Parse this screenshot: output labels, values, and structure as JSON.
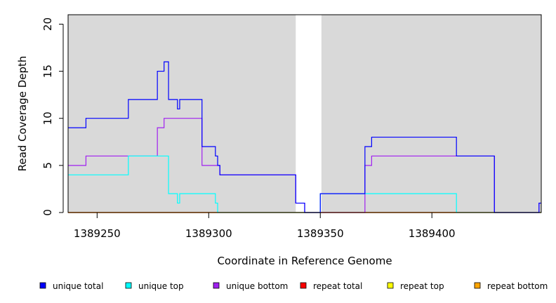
{
  "chart_data": {
    "type": "line",
    "xlabel": "Coordinate in Reference Genome",
    "ylabel": "Read Coverage Depth",
    "xlim": [
      1389237,
      1389449
    ],
    "ylim": [
      0,
      21
    ],
    "x_ticks": [
      {
        "value": 1389250,
        "label": "1389250"
      },
      {
        "value": 1389300,
        "label": "1389300"
      },
      {
        "value": 1389350,
        "label": "1389350"
      },
      {
        "value": 1389400,
        "label": "1389400"
      }
    ],
    "y_ticks": [
      {
        "value": 0,
        "label": "0"
      },
      {
        "value": 5,
        "label": "5"
      },
      {
        "value": 10,
        "label": "10"
      },
      {
        "value": 15,
        "label": "15"
      },
      {
        "value": 20,
        "label": "20"
      }
    ],
    "shaded_regions": [
      {
        "x_start": 1389237,
        "x_end": 1389339,
        "color": "#d9d9d9"
      },
      {
        "x_start": 1389350.5,
        "x_end": 1389449,
        "color": "#d9d9d9"
      }
    ],
    "legend_position": "bottom",
    "series": [
      {
        "name": "unique total",
        "color": "#0000ff",
        "points": [
          [
            1389237,
            9
          ],
          [
            1389245,
            9
          ],
          [
            1389245,
            10
          ],
          [
            1389264,
            10
          ],
          [
            1389264,
            12
          ],
          [
            1389277,
            12
          ],
          [
            1389277,
            15
          ],
          [
            1389280,
            15
          ],
          [
            1389280,
            16
          ],
          [
            1389282,
            16
          ],
          [
            1389282,
            12
          ],
          [
            1389286,
            12
          ],
          [
            1389286,
            11
          ],
          [
            1389287,
            11
          ],
          [
            1389287,
            12
          ],
          [
            1389297,
            12
          ],
          [
            1389297,
            7
          ],
          [
            1389303,
            7
          ],
          [
            1389303,
            6
          ],
          [
            1389304,
            6
          ],
          [
            1389304,
            5
          ],
          [
            1389305,
            5
          ],
          [
            1389305,
            4
          ],
          [
            1389339,
            4
          ],
          [
            1389339,
            1
          ],
          [
            1389343,
            1
          ],
          [
            1389343,
            0
          ],
          [
            1389350,
            0
          ],
          [
            1389350,
            2
          ],
          [
            1389370,
            2
          ],
          [
            1389370,
            7
          ],
          [
            1389373,
            7
          ],
          [
            1389373,
            8
          ],
          [
            1389411,
            8
          ],
          [
            1389411,
            6
          ],
          [
            1389428,
            6
          ],
          [
            1389428,
            0
          ],
          [
            1389448,
            0
          ],
          [
            1389448,
            1
          ],
          [
            1389449,
            1
          ]
        ]
      },
      {
        "name": "unique top",
        "color": "#00ffff",
        "points": [
          [
            1389237,
            4
          ],
          [
            1389264,
            4
          ],
          [
            1389264,
            6
          ],
          [
            1389282,
            6
          ],
          [
            1389282,
            2
          ],
          [
            1389286,
            2
          ],
          [
            1389286,
            1
          ],
          [
            1389287,
            1
          ],
          [
            1389287,
            2
          ],
          [
            1389303,
            2
          ],
          [
            1389303,
            1
          ],
          [
            1389304,
            1
          ],
          [
            1389304,
            0
          ],
          [
            1389350,
            0
          ],
          [
            1389350,
            2
          ],
          [
            1389411,
            2
          ],
          [
            1389411,
            0
          ],
          [
            1389449,
            0
          ]
        ]
      },
      {
        "name": "unique bottom",
        "color": "#a020f0",
        "points": [
          [
            1389237,
            5
          ],
          [
            1389245,
            5
          ],
          [
            1389245,
            6
          ],
          [
            1389277,
            6
          ],
          [
            1389277,
            9
          ],
          [
            1389280,
            9
          ],
          [
            1389280,
            10
          ],
          [
            1389297,
            10
          ],
          [
            1389297,
            5
          ],
          [
            1389305,
            5
          ],
          [
            1389305,
            4
          ],
          [
            1389339,
            4
          ],
          [
            1389339,
            1
          ],
          [
            1389343,
            1
          ],
          [
            1389343,
            0
          ],
          [
            1389370,
            0
          ],
          [
            1389370,
            5
          ],
          [
            1389373,
            5
          ],
          [
            1389373,
            6
          ],
          [
            1389428,
            6
          ],
          [
            1389428,
            0
          ],
          [
            1389448,
            0
          ],
          [
            1389448,
            1
          ],
          [
            1389449,
            1
          ]
        ]
      },
      {
        "name": "repeat total",
        "color": "#ff0000",
        "points": [
          [
            1389237,
            0
          ],
          [
            1389449,
            0
          ]
        ]
      },
      {
        "name": "repeat top",
        "color": "#ffff00",
        "points": [
          [
            1389237,
            0
          ],
          [
            1389449,
            0
          ]
        ]
      },
      {
        "name": "repeat bottom",
        "color": "#ffa500",
        "points": [
          [
            1389237,
            0
          ],
          [
            1389449,
            0
          ]
        ]
      }
    ]
  }
}
